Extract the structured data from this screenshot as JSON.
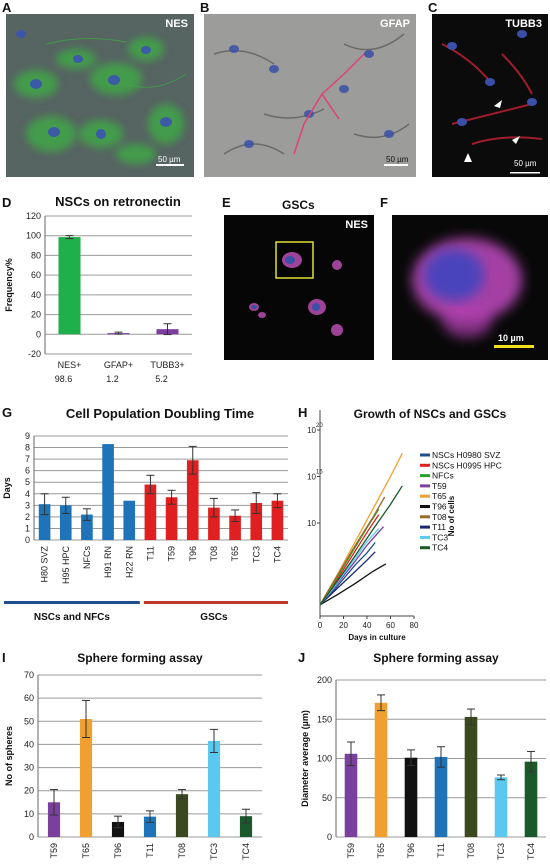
{
  "panels": {
    "A": {
      "letter": "A",
      "label": "NES",
      "scale": "50 µm"
    },
    "B": {
      "letter": "B",
      "label": "GFAP",
      "scale": "50 µm"
    },
    "C": {
      "letter": "C",
      "label": "TUBB3",
      "scale": "50 µm"
    },
    "D": {
      "letter": "D"
    },
    "E": {
      "letter": "E",
      "title": "GSCs",
      "label": "NES"
    },
    "F": {
      "letter": "F",
      "scale": "10 µm"
    },
    "G": {
      "letter": "G"
    },
    "H": {
      "letter": "H"
    },
    "I": {
      "letter": "I"
    },
    "J": {
      "letter": "J"
    }
  },
  "chart_data": [
    {
      "id": "D",
      "type": "bar",
      "title": "NSCs on retronectin",
      "ylabel": "Frequency%",
      "categories": [
        "NES+",
        "GFAP+",
        "TUBB3+"
      ],
      "values": [
        98.6,
        1.2,
        5.2
      ],
      "errors": [
        1.5,
        1.0,
        5.5
      ],
      "value_labels": [
        "98.6",
        "1.2",
        "5.2"
      ],
      "colors": [
        "#1fb04b",
        "#7b3f9e",
        "#7b3f9e"
      ],
      "ylim": [
        -20,
        120
      ],
      "yticks": [
        "120",
        "100",
        "80",
        "60",
        "40",
        "20",
        "0",
        "-20"
      ],
      "grid": true
    },
    {
      "id": "G",
      "type": "bar",
      "title": "Cell Population Doubling Time",
      "ylabel": "Days",
      "categories": [
        "H80 SVZ",
        "H95 HPC",
        "NFCs",
        "H91 RN",
        "H22 RN",
        "T11",
        "T59",
        "T96",
        "T08",
        "T65",
        "TC3",
        "TC4"
      ],
      "values": [
        3.1,
        3.0,
        2.2,
        8.3,
        3.4,
        4.8,
        3.7,
        6.9,
        2.8,
        2.1,
        3.2,
        3.4
      ],
      "errors": [
        0.9,
        0.7,
        0.5,
        0,
        0,
        0.8,
        0.6,
        1.2,
        0.8,
        0.5,
        0.9,
        0.6
      ],
      "colors": [
        "#1f73b8",
        "#1f73b8",
        "#1f73b8",
        "#1f73b8",
        "#1f73b8",
        "#e02020",
        "#e02020",
        "#e02020",
        "#e02020",
        "#e02020",
        "#e02020",
        "#e02020"
      ],
      "ylim": [
        0,
        9
      ],
      "yticks": [
        "9",
        "8",
        "7",
        "6",
        "5",
        "4",
        "3",
        "2",
        "1",
        "0"
      ],
      "group_labels": [
        "NSCs and NFCs",
        "GSCs"
      ],
      "group_colors": [
        "#1f4e8c",
        "#c0392b"
      ],
      "grid": true
    },
    {
      "id": "H",
      "type": "line",
      "title": "Growth of NSCs and GSCs",
      "xlabel": "Days in culture",
      "ylabel": "No of cells",
      "xlim": [
        0,
        80
      ],
      "xticks": [
        "0",
        "20",
        "40",
        "60",
        "80"
      ],
      "ylim_log10": [
        0,
        20
      ],
      "yticks": [
        {
          "base": "10",
          "exp": "20",
          "value": 20
        },
        {
          "base": "10",
          "exp": "15",
          "value": 15
        },
        {
          "base": "10",
          "exp": "",
          "value": 10
        }
      ],
      "series": [
        {
          "name": "NSCs H0980 SVZ",
          "color": "#1f4e8c",
          "x": [
            0,
            10,
            20,
            30,
            40,
            47
          ],
          "y": [
            1.2,
            2.5,
            4.0,
            5.5,
            6.8,
            7.9
          ]
        },
        {
          "name": "NSCs H0995 HPC",
          "color": "#e02020",
          "x": [
            0,
            10,
            20,
            30,
            40,
            50
          ],
          "y": [
            1.2,
            3.0,
            5.0,
            7.0,
            9.0,
            10.9
          ]
        },
        {
          "name": "NFCs",
          "color": "#2ca02c",
          "x": [
            0,
            10,
            20,
            30,
            40,
            50
          ],
          "y": [
            1.2,
            3.2,
            5.3,
            7.4,
            9.5,
            11.5
          ]
        },
        {
          "name": "T59",
          "color": "#7b3f9e",
          "x": [
            0,
            10,
            20,
            30,
            40,
            54
          ],
          "y": [
            1.2,
            2.7,
            4.3,
            5.9,
            7.6,
            9.6
          ]
        },
        {
          "name": "T65",
          "color": "#f0a030",
          "x": [
            0,
            15,
            30,
            45,
            60,
            70
          ],
          "y": [
            1.2,
            4.5,
            8.0,
            11.5,
            15.0,
            17.5
          ]
        },
        {
          "name": "T96",
          "color": "#111111",
          "x": [
            0,
            15,
            30,
            45,
            56
          ],
          "y": [
            1.2,
            2.3,
            3.5,
            4.8,
            5.6
          ]
        },
        {
          "name": "T08",
          "color": "#9a6a2a",
          "x": [
            0,
            15,
            30,
            45,
            55
          ],
          "y": [
            1.2,
            4.4,
            7.6,
            10.6,
            12.8
          ]
        },
        {
          "name": "T11",
          "color": "#1a2a6e",
          "x": [
            0,
            10,
            20,
            30,
            40,
            47
          ],
          "y": [
            1.2,
            2.4,
            3.6,
            4.8,
            6.0,
            6.9
          ]
        },
        {
          "name": "TC3",
          "color": "#5bc8ef",
          "x": [
            0,
            10,
            20,
            30,
            40,
            50
          ],
          "y": [
            1.2,
            2.8,
            4.5,
            6.2,
            8.0,
            9.4
          ]
        },
        {
          "name": "TC4",
          "color": "#1a5a2a",
          "x": [
            0,
            15,
            30,
            45,
            60,
            70
          ],
          "y": [
            1.2,
            3.8,
            6.5,
            9.3,
            12.0,
            14.0
          ]
        }
      ]
    },
    {
      "id": "I",
      "type": "bar",
      "title": "Sphere forming assay",
      "ylabel": "No of spheres",
      "categories": [
        "T59",
        "T65",
        "T96",
        "T11",
        "T08",
        "TC3",
        "TC4"
      ],
      "values": [
        15,
        51,
        6.5,
        8.8,
        18.5,
        41.5,
        9
      ],
      "errors": [
        5.5,
        8,
        2.5,
        2.5,
        2,
        5,
        3
      ],
      "colors": [
        "#7b3f9e",
        "#f0a030",
        "#111111",
        "#1f73b8",
        "#3a4a1e",
        "#5bc8ef",
        "#1a5a2a"
      ],
      "ylim": [
        0,
        70
      ],
      "yticks": [
        "70",
        "60",
        "50",
        "40",
        "30",
        "20",
        "10",
        "0"
      ],
      "grid": true
    },
    {
      "id": "J",
      "type": "bar",
      "title": "Sphere forming assay",
      "ylabel": "Diameter average (µm)",
      "categories": [
        "T59",
        "T65",
        "T96",
        "T11",
        "T08",
        "TC3",
        "TC4"
      ],
      "values": [
        106,
        171,
        101,
        102,
        153,
        76,
        96
      ],
      "errors": [
        15,
        10,
        10,
        13,
        10,
        3,
        13
      ],
      "colors": [
        "#7b3f9e",
        "#f0a030",
        "#111111",
        "#1f73b8",
        "#3a4a1e",
        "#5bc8ef",
        "#1a5a2a"
      ],
      "ylim": [
        0,
        200
      ],
      "yticks": [
        "200",
        "150",
        "100",
        "50",
        "0"
      ],
      "grid": true
    }
  ]
}
